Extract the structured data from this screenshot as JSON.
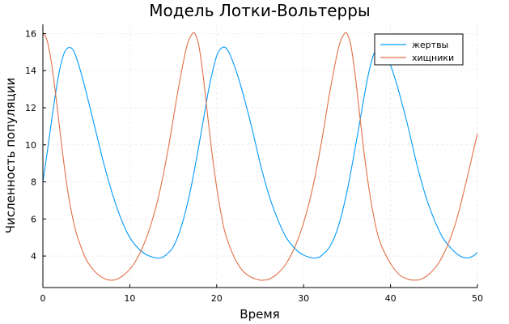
{
  "chart_data": {
    "type": "line",
    "title": "Модель Лотки-Вольтерры",
    "xlabel": "Время",
    "ylabel": "Численность популяции",
    "xlim": [
      0,
      50
    ],
    "ylim": [
      2.3,
      16.5
    ],
    "xticks": [
      0,
      10,
      20,
      30,
      40,
      50
    ],
    "yticks": [
      4,
      6,
      8,
      10,
      12,
      14,
      16
    ],
    "grid": true,
    "legend_position": "top-right",
    "series": [
      {
        "name": "жертвы",
        "color": "#009af9",
        "x": [
          0,
          0.5,
          1,
          1.5,
          2,
          2.5,
          3,
          3.5,
          4,
          4.5,
          5,
          6,
          7,
          8,
          9,
          10,
          11,
          12,
          13,
          13.5,
          14,
          15,
          16,
          17,
          18,
          19,
          19.5,
          20,
          20.5,
          21,
          21.5,
          22,
          22.5,
          23,
          24,
          25,
          26,
          27,
          28,
          29,
          30,
          31,
          31.5,
          32,
          33,
          34,
          35,
          36,
          37,
          37.5,
          38,
          38.5,
          39,
          39.5,
          40,
          40.5,
          41,
          42,
          43,
          44,
          45,
          46,
          47,
          48,
          48.8,
          49.5,
          50
        ],
        "y": [
          8.0,
          9.6,
          11.3,
          12.9,
          14.2,
          15.0,
          15.25,
          15.1,
          14.5,
          13.7,
          12.8,
          10.9,
          9.0,
          7.35,
          6.0,
          5.0,
          4.4,
          4.05,
          3.9,
          3.9,
          4.0,
          4.5,
          5.7,
          7.6,
          10.1,
          12.8,
          13.9,
          14.8,
          15.2,
          15.25,
          14.9,
          14.3,
          13.6,
          12.8,
          11.0,
          9.0,
          7.3,
          6.0,
          5.0,
          4.4,
          4.05,
          3.9,
          3.9,
          4.0,
          4.5,
          5.6,
          7.5,
          10.0,
          12.7,
          13.9,
          14.8,
          15.2,
          15.25,
          14.9,
          14.3,
          13.6,
          12.8,
          11.0,
          9.0,
          7.3,
          6.0,
          5.0,
          4.4,
          4.0,
          3.9,
          4.0,
          4.2
        ]
      },
      {
        "name": "хищники",
        "color": "#e26f46",
        "x": [
          0,
          0.3,
          0.6,
          1,
          1.5,
          2,
          2.5,
          3,
          3.5,
          4,
          5,
          6,
          7,
          7.7,
          8.5,
          9.5,
          10.5,
          11.5,
          12.5,
          13.5,
          14.5,
          15.5,
          16.5,
          17.2,
          17.6,
          18,
          18.5,
          19,
          19.5,
          20,
          20.5,
          21,
          22,
          23,
          24,
          25,
          25.3,
          26,
          27,
          28,
          29,
          30,
          31,
          32,
          33,
          34,
          34.7,
          35.1,
          35.5,
          36,
          36.5,
          37,
          37.5,
          38,
          38.5,
          39,
          40,
          41,
          42,
          42.7,
          43.5,
          44.5,
          45.5,
          46.5,
          47.5,
          48.5,
          49.5,
          50
        ],
        "y": [
          16.0,
          15.85,
          15.4,
          14.4,
          12.6,
          10.6,
          8.7,
          7.1,
          5.9,
          5.0,
          3.8,
          3.15,
          2.8,
          2.7,
          2.75,
          3.05,
          3.6,
          4.5,
          5.8,
          7.6,
          10.0,
          12.8,
          15.2,
          16.0,
          15.9,
          15.2,
          13.5,
          11.4,
          9.4,
          7.7,
          6.3,
          5.2,
          3.95,
          3.2,
          2.85,
          2.7,
          2.7,
          2.75,
          3.05,
          3.6,
          4.5,
          5.8,
          7.6,
          10.0,
          12.8,
          15.2,
          16.0,
          15.9,
          15.2,
          13.5,
          11.4,
          9.4,
          7.7,
          6.3,
          5.2,
          4.5,
          3.6,
          3.0,
          2.75,
          2.7,
          2.75,
          3.05,
          3.6,
          4.5,
          5.8,
          7.6,
          9.6,
          10.6
        ]
      }
    ]
  }
}
